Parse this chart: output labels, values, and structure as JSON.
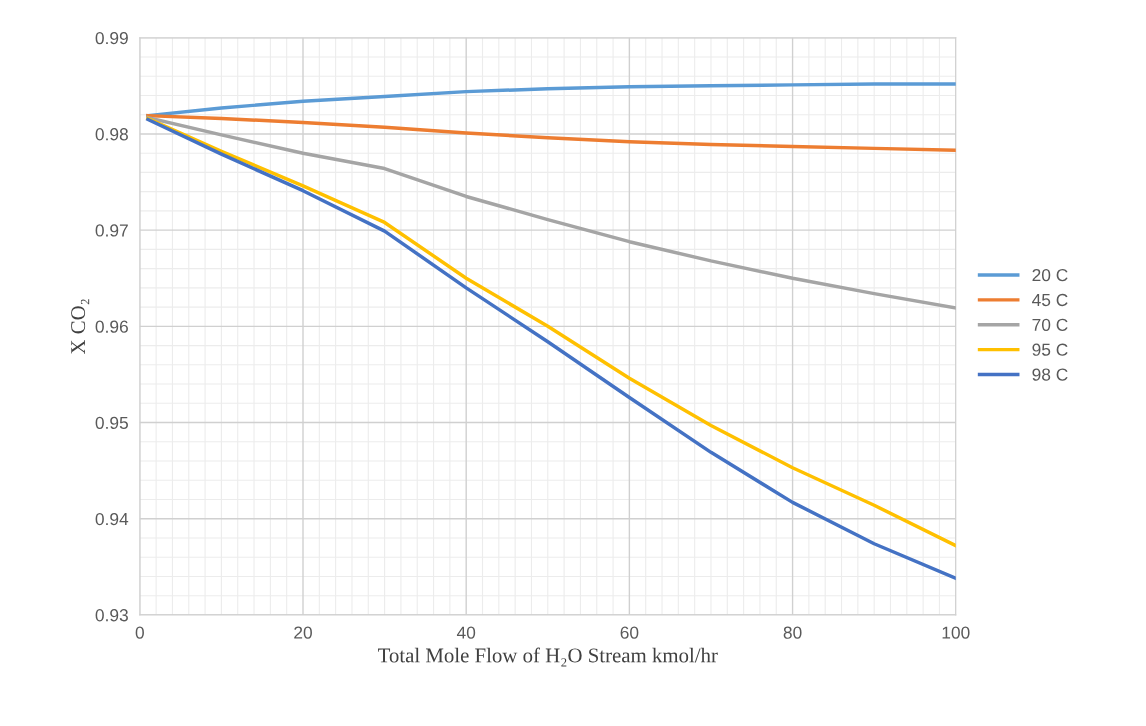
{
  "chart_data": {
    "type": "line",
    "xlabel": "Total Mole Flow of H₂O Stream kmol/hr",
    "ylabel": "X CO₂",
    "xlim": [
      0,
      100
    ],
    "xticks": [
      0,
      20,
      40,
      60,
      80,
      100
    ],
    "ylim": [
      0.93,
      0.99
    ],
    "yticks": [
      0.93,
      0.94,
      0.95,
      0.96,
      0.97,
      0.98,
      0.99
    ],
    "grid": true,
    "legend": "right",
    "marker": "none",
    "line_style": "solid",
    "x": [
      1,
      10,
      20,
      30,
      40,
      50,
      60,
      70,
      80,
      90,
      100
    ],
    "series": [
      {
        "name": "20 C",
        "color": "#5b9bd5",
        "values": [
          0.9819,
          0.9827,
          0.9834,
          0.9839,
          0.9844,
          0.9847,
          0.9849,
          0.985,
          0.9851,
          0.9852,
          0.9852
        ]
      },
      {
        "name": "45 C",
        "color": "#ed7d31",
        "values": [
          0.9819,
          0.9816,
          0.9812,
          0.9807,
          0.9801,
          0.9796,
          0.9792,
          0.9789,
          0.9787,
          0.9785,
          0.9783
        ]
      },
      {
        "name": "70 C",
        "color": "#a5a5a5",
        "values": [
          0.9817,
          0.9799,
          0.978,
          0.9764,
          0.9735,
          0.9711,
          0.9688,
          0.9668,
          0.965,
          0.9634,
          0.9619
        ]
      },
      {
        "name": "95 C",
        "color": "#ffc000",
        "values": [
          0.9816,
          0.9782,
          0.9746,
          0.9708,
          0.965,
          0.96,
          0.9546,
          0.9497,
          0.9453,
          0.9414,
          0.9372
        ]
      },
      {
        "name": "98 C",
        "color": "#4472c4",
        "values": [
          0.9815,
          0.9779,
          0.9741,
          0.9699,
          0.964,
          0.9584,
          0.9526,
          0.9469,
          0.9417,
          0.9374,
          0.9338
        ]
      }
    ]
  }
}
